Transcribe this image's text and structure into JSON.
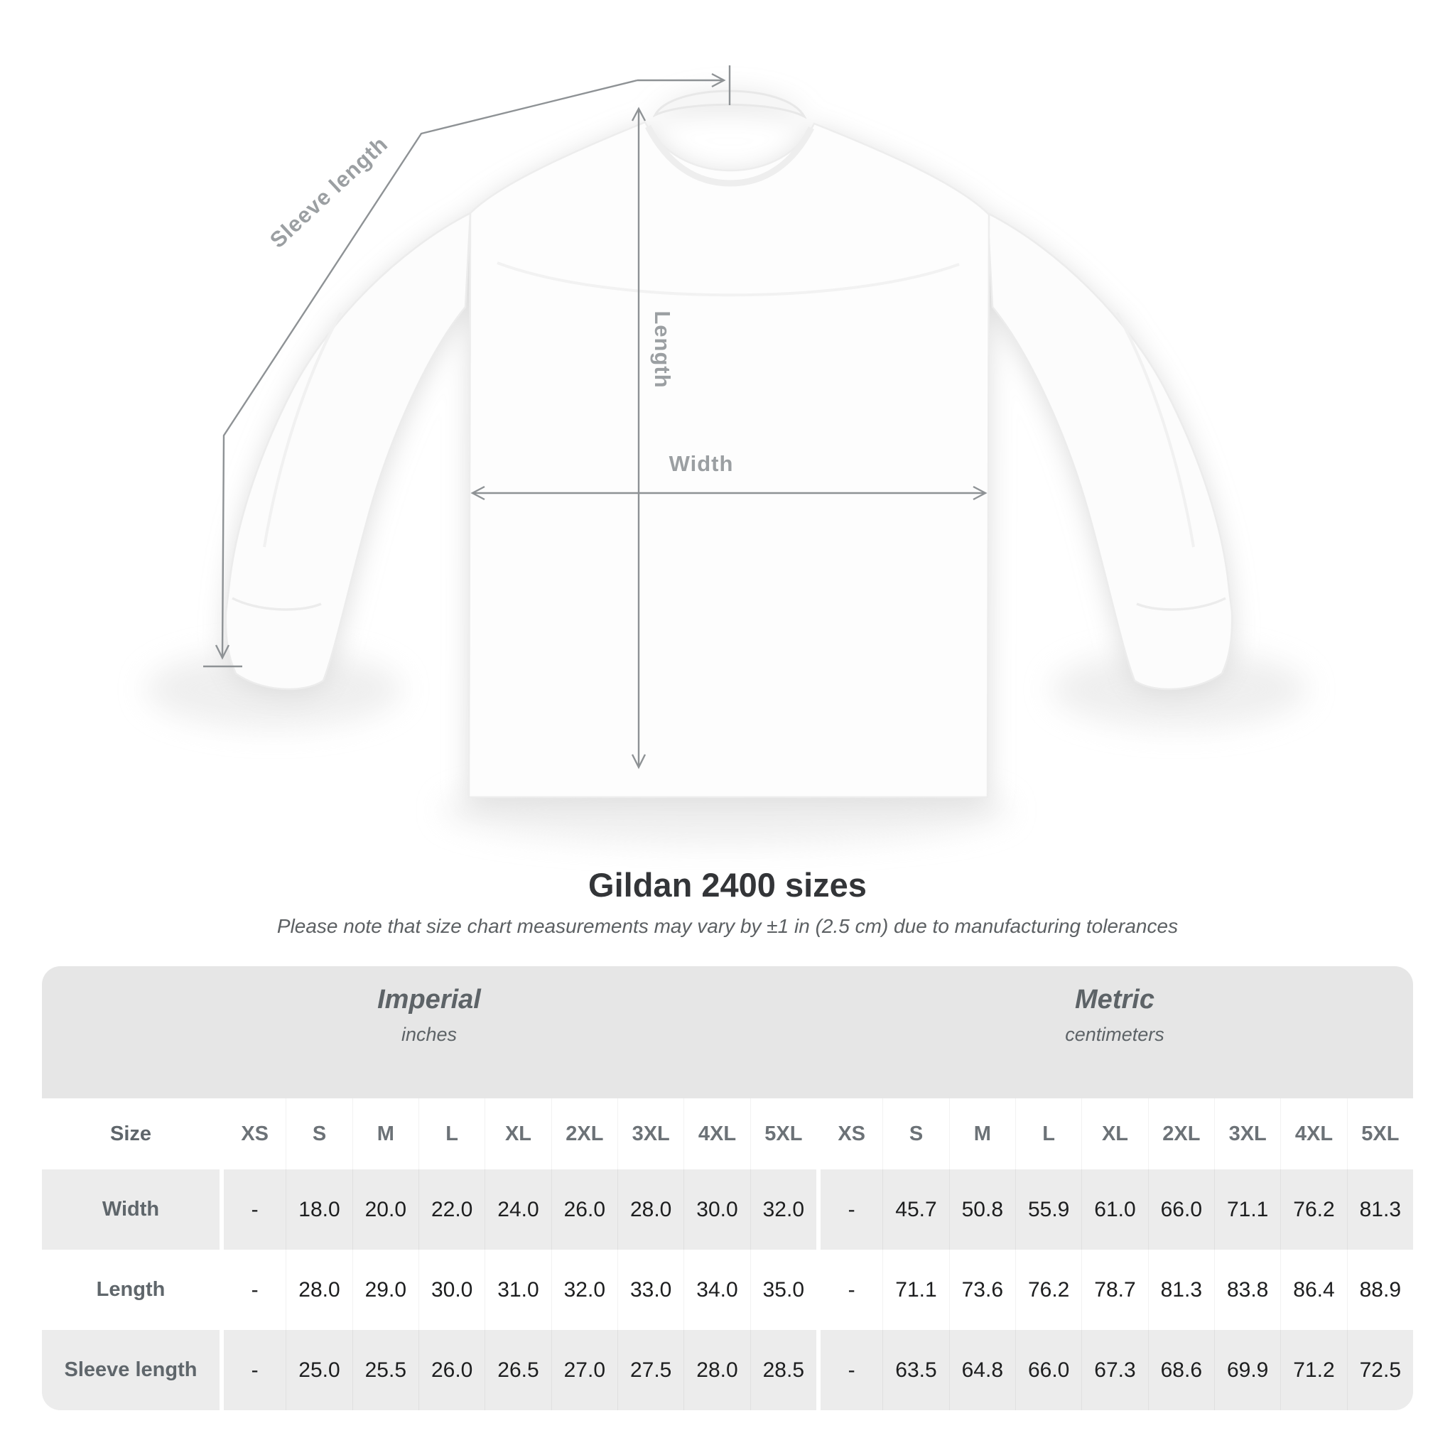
{
  "diagram": {
    "sleeve_length_label": "Sleeve length",
    "length_label": "Length",
    "width_label": "Width"
  },
  "heading": {
    "title": "Gildan 2400 sizes",
    "subtitle": "Please note that size chart measurements may vary by ±1 in (2.5 cm) due to manufacturing tolerances"
  },
  "table": {
    "size_column_header": "Size",
    "groups": [
      {
        "label": "Imperial",
        "unit": "inches"
      },
      {
        "label": "Metric",
        "unit": "centimeters"
      }
    ],
    "sizes": [
      "XS",
      "S",
      "M",
      "L",
      "XL",
      "2XL",
      "3XL",
      "4XL",
      "5XL"
    ],
    "rows": [
      {
        "label": "Width",
        "imperial": [
          "-",
          "18.0",
          "20.0",
          "22.0",
          "24.0",
          "26.0",
          "28.0",
          "30.0",
          "32.0"
        ],
        "metric": [
          "-",
          "45.7",
          "50.8",
          "55.9",
          "61.0",
          "66.0",
          "71.1",
          "76.2",
          "81.3"
        ]
      },
      {
        "label": "Length",
        "imperial": [
          "-",
          "28.0",
          "29.0",
          "30.0",
          "31.0",
          "32.0",
          "33.0",
          "34.0",
          "35.0"
        ],
        "metric": [
          "-",
          "71.1",
          "73.6",
          "76.2",
          "78.7",
          "81.3",
          "83.8",
          "86.4",
          "88.9"
        ]
      },
      {
        "label": "Sleeve length",
        "imperial": [
          "-",
          "25.0",
          "25.5",
          "26.0",
          "26.5",
          "27.0",
          "27.5",
          "28.0",
          "28.5"
        ],
        "metric": [
          "-",
          "63.5",
          "64.8",
          "66.0",
          "67.3",
          "68.6",
          "69.9",
          "71.2",
          "72.5"
        ]
      }
    ]
  },
  "colors": {
    "annotation_line": "#8e9295",
    "annotation_label": "#9b9fa2",
    "band_bg": "#e6e6e6",
    "shaded_row_bg": "#ececec",
    "title_text": "#333538",
    "data_text": "#1d1e1f",
    "muted_text": "#5f666b"
  }
}
